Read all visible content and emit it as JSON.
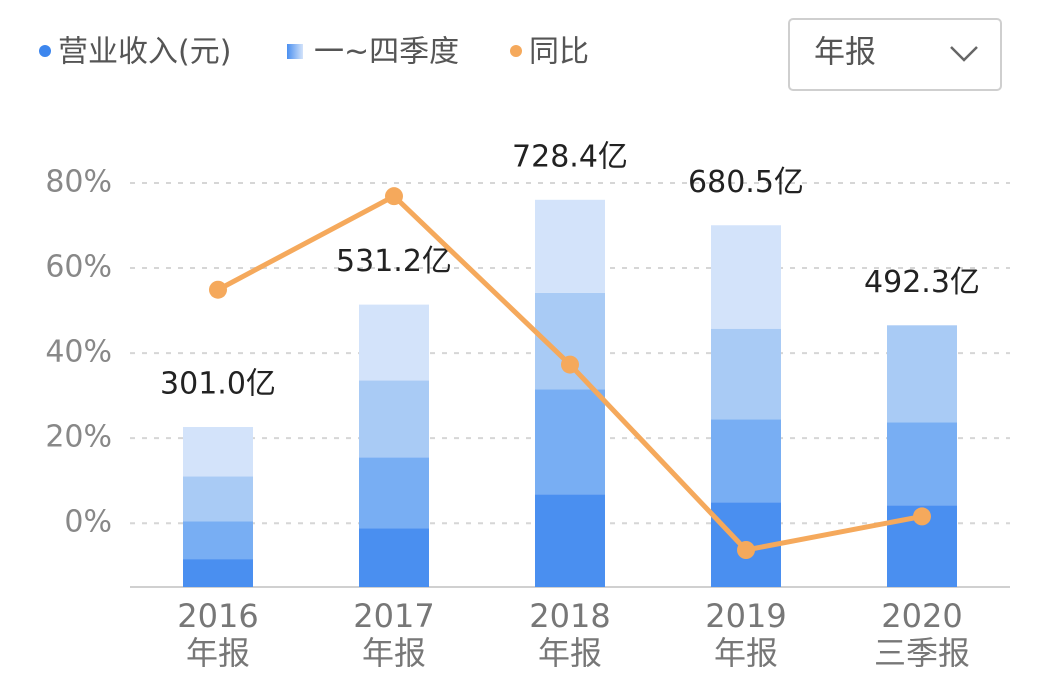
{
  "selector": {
    "label": "年报"
  },
  "chart_data": {
    "type": "bar",
    "categories": [
      [
        "2016",
        "年报"
      ],
      [
        "2017",
        "年报"
      ],
      [
        "2018",
        "年报"
      ],
      [
        "2019",
        "年报"
      ],
      [
        "2020",
        "三季报"
      ]
    ],
    "ylim": [
      -15,
      80
    ],
    "yticks": [
      {
        "value": 0,
        "label": "0%"
      },
      {
        "value": 20,
        "label": "20%"
      },
      {
        "value": 40,
        "label": "40%"
      },
      {
        "value": 60,
        "label": "60%"
      },
      {
        "value": 80,
        "label": "80%"
      }
    ],
    "y2lim": [
      0,
      760
    ],
    "grid": true,
    "series": [
      {
        "name": "营业收入(元)",
        "color": "#3d86ee",
        "axis": "y2",
        "values": [
          301.0,
          531.2,
          728.4,
          680.5,
          492.3
        ],
        "value_labels": [
          "301.0亿",
          "531.2亿",
          "728.4亿",
          "680.5亿",
          "492.3亿"
        ]
      },
      {
        "name": "一~四季度",
        "colors": [
          "#4a8ff0",
          "#78aef3",
          "#a9cbf5",
          "#d3e3fa"
        ],
        "axis": "y2",
        "values": [
          [
            52.5,
            71.3,
            84.3,
            92.9
          ],
          [
            110.7,
            133.2,
            144.5,
            142.8
          ],
          [
            174.5,
            197.0,
            182.0,
            174.9
          ],
          [
            159.5,
            155.7,
            170.7,
            194.6
          ],
          [
            153.8,
            155.7,
            182.8,
            null
          ]
        ]
      },
      {
        "name": "同比",
        "color": "#f5a95c",
        "axis": "y",
        "values": [
          54.9,
          76.9,
          37.3,
          -6.3,
          1.6
        ]
      }
    ]
  }
}
